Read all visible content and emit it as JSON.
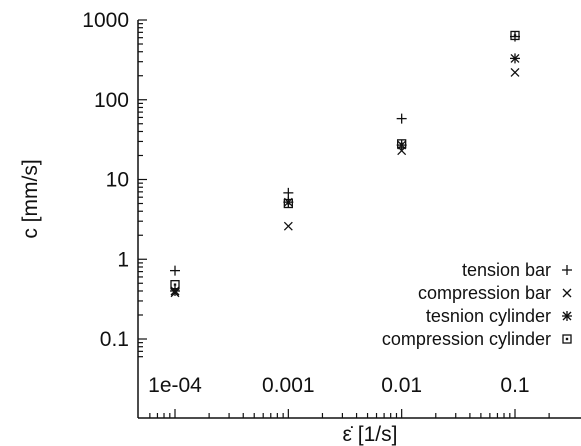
{
  "chart_data": {
    "type": "scatter",
    "xscale": "log",
    "yscale": "log",
    "xlabel": "ε̇  [1/s]",
    "ylabel": "c [mm/s]",
    "xlim": [
      5e-05,
      0.25
    ],
    "ylim": [
      0.05,
      1000
    ],
    "xticks": [
      0.0001,
      0.001,
      0.01,
      0.1
    ],
    "xtick_labels": [
      "1e-04",
      "0.001",
      "0.01",
      "0.1"
    ],
    "yticks": [
      0.1,
      1,
      10,
      100,
      1000
    ],
    "ytick_labels": [
      "0.1",
      "1",
      "10",
      "100",
      "1000"
    ],
    "grid": false,
    "legend_position": "bottom-right",
    "series": [
      {
        "name": "tension bar",
        "marker": "plus",
        "points": [
          [
            0.0001,
            0.72
          ],
          [
            0.001,
            6.8
          ],
          [
            0.01,
            58
          ],
          [
            0.1,
            620
          ]
        ]
      },
      {
        "name": "compression bar",
        "marker": "cross",
        "points": [
          [
            0.0001,
            0.38
          ],
          [
            0.001,
            2.6
          ],
          [
            0.01,
            23
          ],
          [
            0.1,
            220
          ]
        ]
      },
      {
        "name": "tesnion cylinder",
        "marker": "star",
        "points": [
          [
            0.0001,
            0.4
          ],
          [
            0.001,
            5.2
          ],
          [
            0.01,
            27
          ],
          [
            0.1,
            330
          ]
        ]
      },
      {
        "name": "compression cylinder",
        "marker": "square-dot",
        "points": [
          [
            0.0001,
            0.48
          ],
          [
            0.001,
            5.0
          ],
          [
            0.01,
            28
          ],
          [
            0.1,
            640
          ]
        ]
      }
    ]
  }
}
